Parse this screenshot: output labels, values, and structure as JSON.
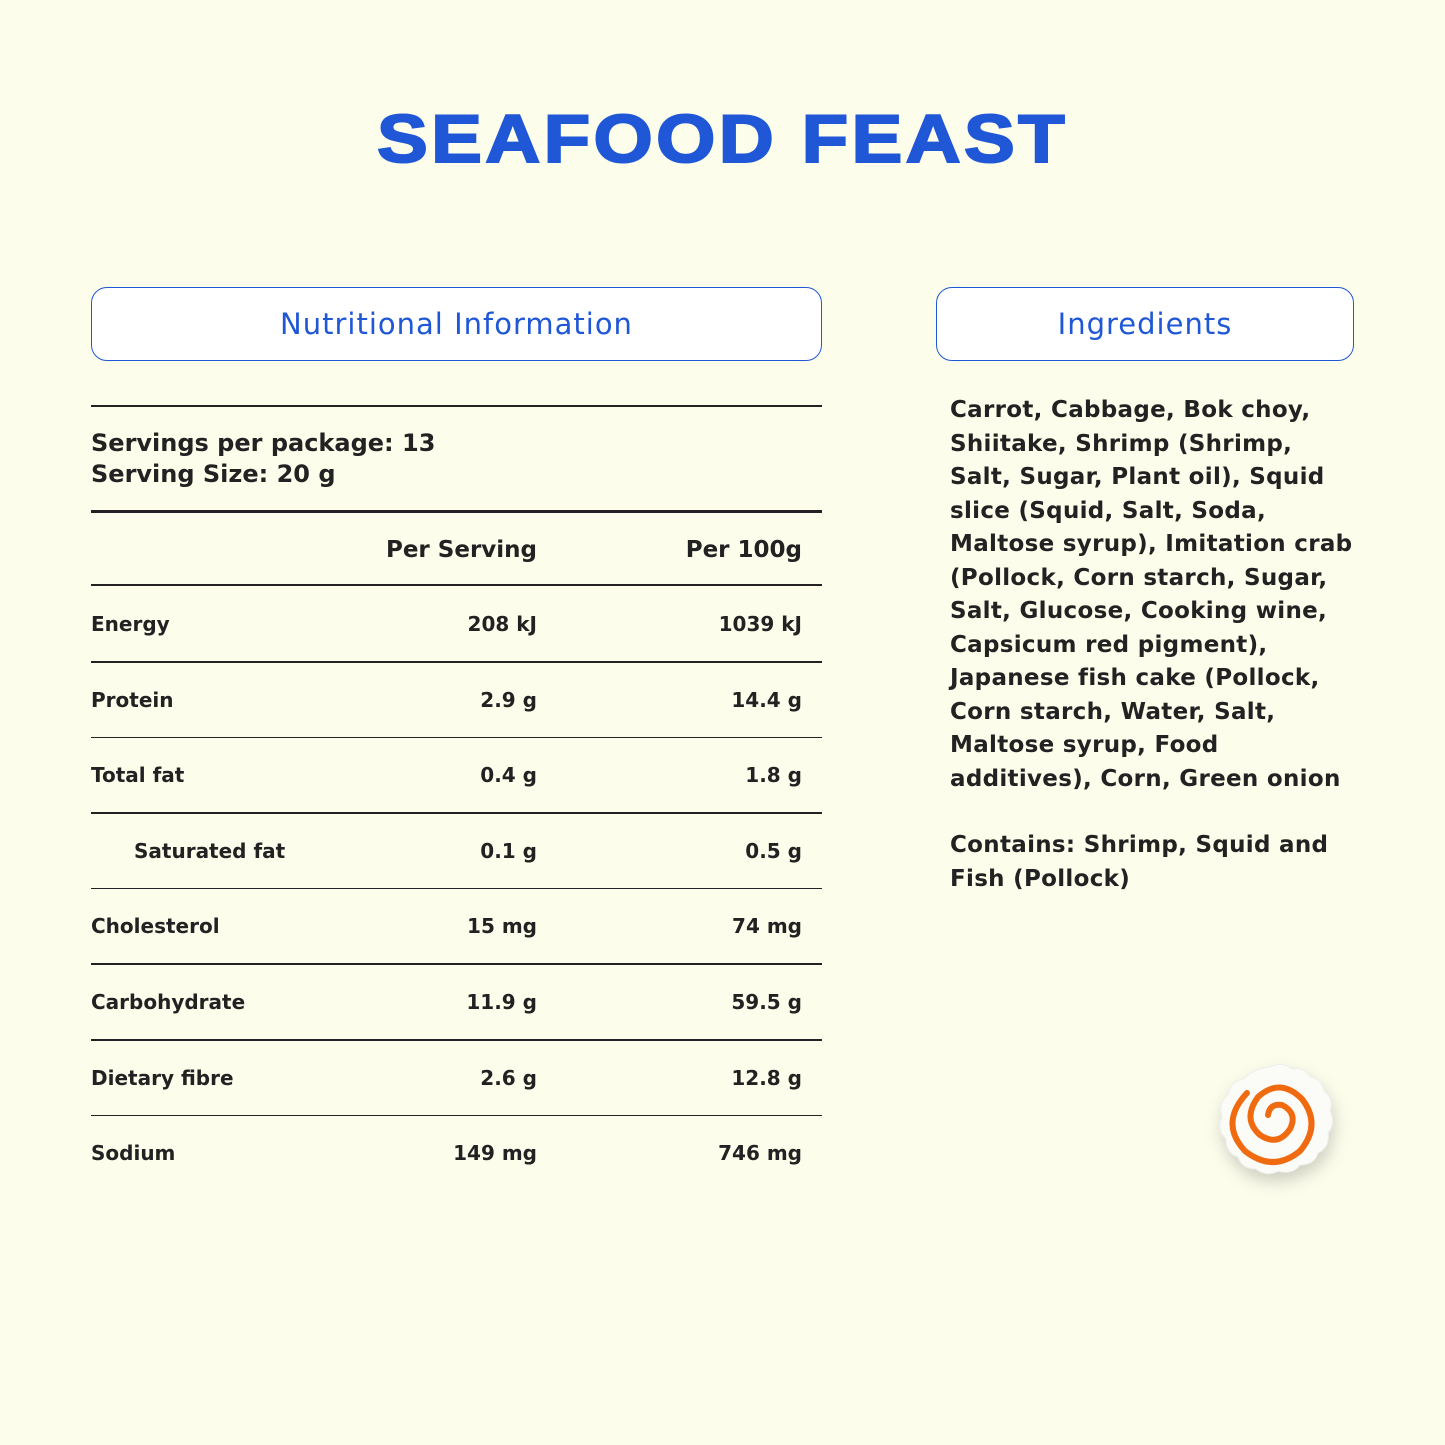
{
  "header": {
    "title": "SEAFOOD FEAST"
  },
  "nutrition": {
    "heading": "Nutritional Information",
    "servings_per_package": "Servings per package: 13",
    "serving_size": "Serving Size: 20 g",
    "columns": [
      "Per Serving",
      "Per 100g"
    ],
    "rows": [
      [
        "Energy",
        "208 kJ",
        "1039 kJ"
      ],
      [
        "Protein",
        "2.9 g",
        "14.4 g"
      ],
      [
        "Total fat",
        "0.4 g",
        "1.8 g"
      ],
      [
        "Saturated fat",
        "0.1 g",
        "0.5 g"
      ],
      [
        "Cholesterol",
        "15 mg",
        "74 mg"
      ],
      [
        "Carbohydrate",
        "11.9 g",
        "59.5 g"
      ],
      [
        "Dietary fibre",
        "2.6 g",
        "12.8 g"
      ],
      [
        "Sodium",
        "149 mg",
        "746 mg"
      ]
    ]
  },
  "ingredients": {
    "heading": "Ingredients",
    "text": "Carrot, Cabbage, Bok choy, Shiitake, Shrimp (Shrimp, Salt, Sugar, Plant oil), Squid slice (Squid, Salt, Soda, Maltose syrup), Imitation crab (Pollock, Corn starch, Sugar, Salt, Glucose, Cooking wine, Capsicum red pigment), Japanese fish cake (Pollock, Corn starch, Water, Salt, Maltose syrup, Food additives), Corn, Green onion",
    "contains": "Contains: Shrimp, Squid and Fish (Pollock)"
  }
}
